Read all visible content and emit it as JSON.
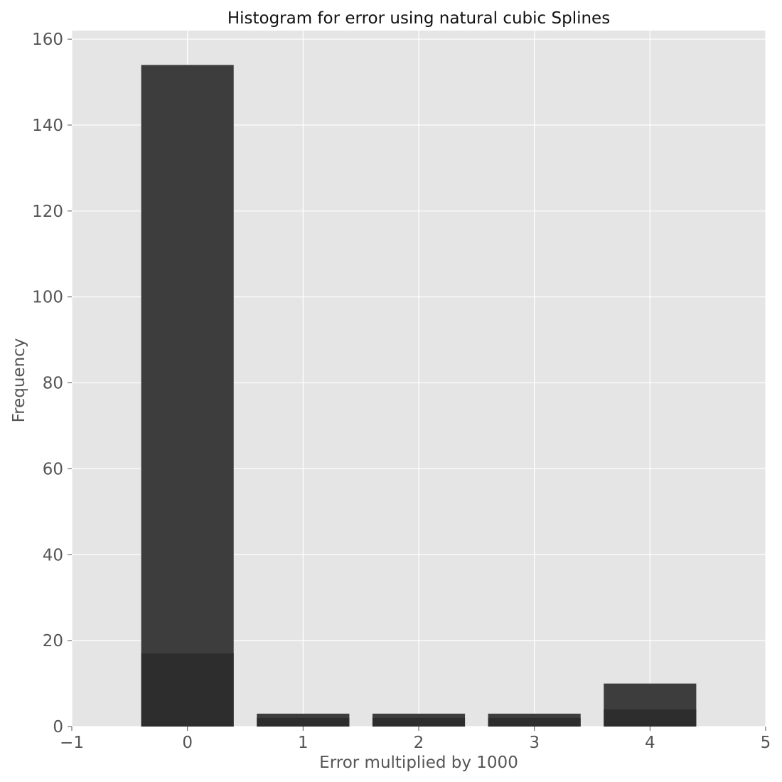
{
  "chart_data": {
    "type": "bar",
    "title": "Histogram for error using natural cubic Splines",
    "xlabel": "Error multiplied by 1000",
    "ylabel": "Frequency",
    "xlim": [
      -1,
      5
    ],
    "ylim": [
      0,
      162
    ],
    "bar_width": 0.8,
    "x": [
      0,
      1,
      2,
      3,
      4
    ],
    "series": [
      {
        "values": [
          154,
          3,
          3,
          3,
          10
        ],
        "color": "#3d3d3d"
      },
      {
        "values": [
          17,
          2,
          2,
          2,
          4
        ],
        "color": "#2d2d2d"
      }
    ],
    "x_ticks": [
      -1,
      0,
      1,
      2,
      3,
      4,
      5
    ],
    "x_tick_labels": [
      "−1",
      "0",
      "1",
      "2",
      "3",
      "4",
      "5"
    ],
    "y_ticks": [
      0,
      20,
      40,
      60,
      80,
      100,
      120,
      140,
      160
    ],
    "y_tick_labels": [
      "0",
      "20",
      "40",
      "60",
      "80",
      "100",
      "120",
      "140",
      "160"
    ],
    "grid": true,
    "background": "#e5e5e5",
    "grid_color": "#ffffff"
  }
}
